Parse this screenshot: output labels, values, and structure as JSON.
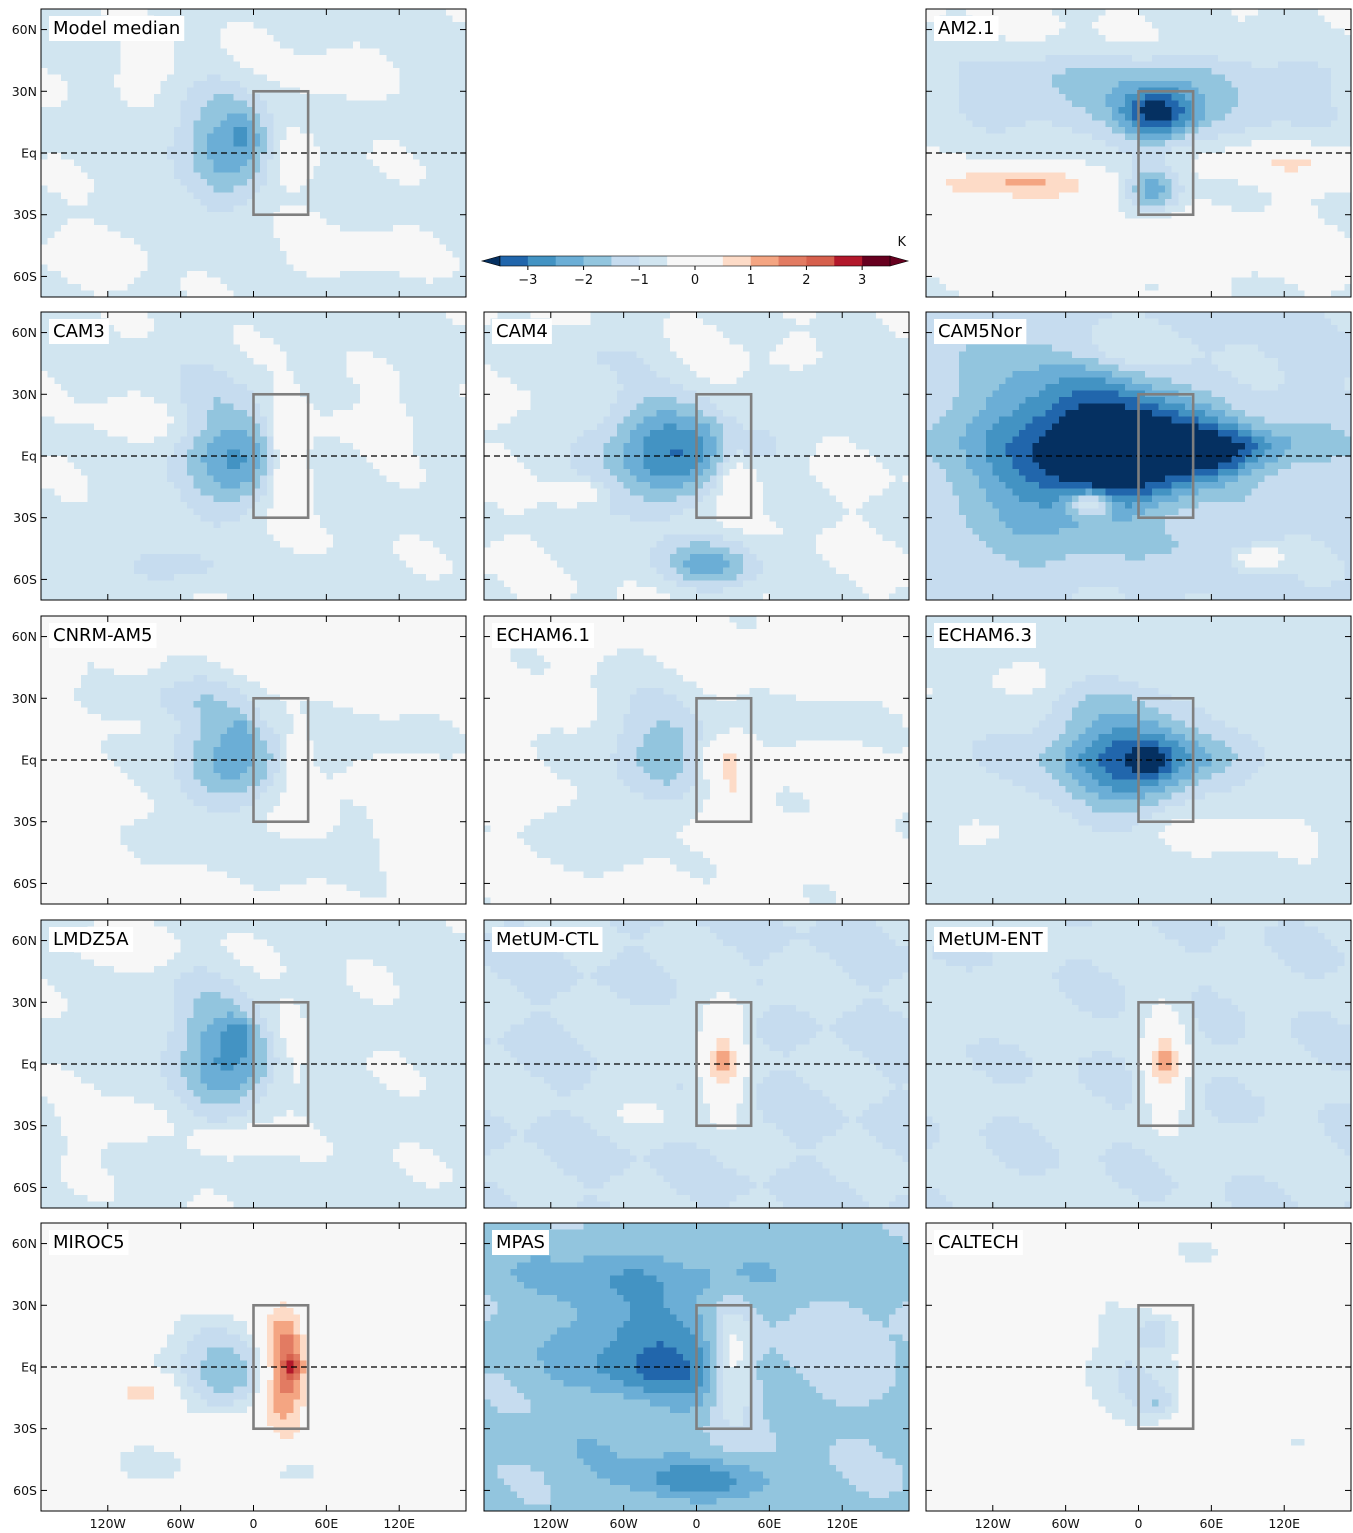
{
  "chart_data": {
    "type": "heatmap",
    "title": "",
    "xlabel": "",
    "ylabel": "",
    "x_ticks": [
      "120W",
      "60W",
      "0",
      "60E",
      "120E"
    ],
    "x_tick_values": [
      -120,
      -60,
      0,
      60,
      120
    ],
    "y_ticks": [
      "60N",
      "30N",
      "Eq",
      "30S",
      "60S"
    ],
    "y_tick_values": [
      60,
      30,
      0,
      -30,
      -60
    ],
    "xlim": [
      -175,
      175
    ],
    "ylim": [
      -70,
      70
    ],
    "equator_line": "dashed",
    "box": {
      "lon": [
        0,
        45
      ],
      "lat": [
        -30,
        30
      ]
    },
    "colorbar": {
      "unit": "K",
      "tick_labels": [
        "−3",
        "−2",
        "−1",
        "0",
        "1",
        "2",
        "3"
      ],
      "tick_values": [
        -3,
        -2,
        -1,
        0,
        1,
        2,
        3
      ],
      "levels": [
        -3.5,
        -3.0,
        -2.5,
        -2.0,
        -1.5,
        -1.0,
        -0.5,
        0.5,
        1.0,
        1.5,
        2.0,
        2.5,
        3.0,
        3.5
      ],
      "colors": [
        "#053061",
        "#2166ac",
        "#4393c3",
        "#6baed6",
        "#92c5de",
        "#c6dcef",
        "#d1e5f0",
        "#f7f7f7",
        "#fddbc7",
        "#f4a582",
        "#e27b62",
        "#d6604d",
        "#b2182b",
        "#67001f"
      ],
      "extend": "both"
    },
    "panels": [
      {
        "label": "Model median",
        "bg": -0.6,
        "features": [
          {
            "lon": -15,
            "lat": 5,
            "rlon": 45,
            "rlat": 26,
            "amp": -1.7,
            "tri": 0.55
          },
          {
            "lon": -8,
            "lat": 12,
            "rlon": 12,
            "rlat": 10,
            "amp": -0.5,
            "tri": 0
          },
          {
            "lon": 30,
            "lat": 0,
            "rlon": 18,
            "rlat": 12,
            "amp": 1.05,
            "tri": 0
          },
          {
            "lon": -60,
            "lat": 42,
            "rlon": 55,
            "rlat": 14,
            "amp": 0.4,
            "tri": 0
          },
          {
            "lon": 60,
            "lat": 35,
            "rlon": 35,
            "rlat": 12,
            "amp": 0.35,
            "tri": 0
          },
          {
            "lon": -110,
            "lat": -45,
            "rlon": 60,
            "rlat": 15,
            "amp": 0.3,
            "tri": 0
          },
          {
            "lon": 80,
            "lat": -50,
            "rlon": 60,
            "rlat": 12,
            "amp": 0.3,
            "tri": 0
          }
        ]
      },
      null,
      {
        "label": "AM2.1",
        "bg": -0.5,
        "features": [
          {
            "lon": 0,
            "lat": 25,
            "rlon": 170,
            "rlat": 18,
            "amp": -1.1,
            "tri": 0
          },
          {
            "lon": 15,
            "lat": 40,
            "rlon": 170,
            "rlat": 10,
            "amp": -0.5,
            "tri": 0
          },
          {
            "lon": 15,
            "lat": 18,
            "rlon": 30,
            "rlat": 13,
            "amp": -2.5,
            "tri": 0
          },
          {
            "lon": 12,
            "lat": -18,
            "rlon": 22,
            "rlat": 12,
            "amp": -1.9,
            "tri": 0
          },
          {
            "lon": -100,
            "lat": -15,
            "rlon": 75,
            "rlat": 8,
            "amp": 1.5,
            "tri": 0
          },
          {
            "lon": 130,
            "lat": -5,
            "rlon": 60,
            "rlat": 8,
            "amp": 1.0,
            "tri": 0
          },
          {
            "lon": -80,
            "lat": -40,
            "rlon": 120,
            "rlat": 18,
            "amp": 0.35,
            "tri": 0
          },
          {
            "lon": 60,
            "lat": -45,
            "rlon": 100,
            "rlat": 15,
            "amp": 0.35,
            "tri": 0
          }
        ]
      },
      {
        "label": "CAM3",
        "bg": -0.6,
        "features": [
          {
            "lon": -12,
            "lat": 2,
            "rlon": 50,
            "rlat": 26,
            "amp": -1.9,
            "tri": 0.55
          },
          {
            "lon": 28,
            "lat": 0,
            "rlon": 16,
            "rlat": 24,
            "amp": 1.6,
            "tri": 0
          },
          {
            "lon": -80,
            "lat": 15,
            "rlon": 60,
            "rlat": 12,
            "amp": 0.45,
            "tri": 0
          },
          {
            "lon": 80,
            "lat": 15,
            "rlon": 60,
            "rlat": 10,
            "amp": 0.4,
            "tri": 0
          },
          {
            "lon": -70,
            "lat": -55,
            "rlon": 60,
            "rlat": 8,
            "amp": -0.5,
            "tri": 0
          }
        ]
      },
      {
        "label": "CAM4",
        "bg": -0.5,
        "features": [
          {
            "lon": -15,
            "lat": 5,
            "rlon": 65,
            "rlat": 26,
            "amp": -2.5,
            "tri": 0.6
          },
          {
            "lon": 30,
            "lat": -5,
            "rlon": 16,
            "rlat": 18,
            "amp": 0.9,
            "tri": 0
          },
          {
            "lon": -50,
            "lat": 30,
            "rlon": 60,
            "rlat": 18,
            "amp": 0.45,
            "tri": 0
          },
          {
            "lon": 120,
            "lat": 35,
            "rlon": 50,
            "rlat": 12,
            "amp": -0.4,
            "tri": 0
          },
          {
            "lon": 10,
            "lat": -52,
            "rlon": 40,
            "rlat": 12,
            "amp": -1.7,
            "tri": 0
          },
          {
            "lon": -100,
            "lat": 50,
            "rlon": 60,
            "rlat": 12,
            "amp": -0.4,
            "tri": 0
          },
          {
            "lon": -100,
            "lat": -18,
            "rlon": 20,
            "rlat": 5,
            "amp": 1.2,
            "tri": 0
          }
        ]
      },
      {
        "label": "CAM5Nor",
        "bg": -1.05,
        "features": [
          {
            "lon": 0,
            "lat": 0,
            "rlon": 170,
            "rlat": 25,
            "amp": -0.6,
            "tri": 0
          },
          {
            "lon": -10,
            "lat": 5,
            "rlon": 105,
            "rlat": 30,
            "amp": -3.3,
            "tri": 0.7
          },
          {
            "lon": 70,
            "lat": 0,
            "rlon": 40,
            "rlat": 12,
            "amp": -0.8,
            "tri": 0
          },
          {
            "lon": -40,
            "lat": -23,
            "rlon": 18,
            "rlat": 6,
            "amp": 2.2,
            "tri": 0
          },
          {
            "lon": -20,
            "lat": 52,
            "rlon": 50,
            "rlat": 12,
            "amp": 0.6,
            "tri": 0
          },
          {
            "lon": 100,
            "lat": -50,
            "rlon": 18,
            "rlat": 5,
            "amp": 1.5,
            "tri": 0
          },
          {
            "lon": 30,
            "lat": -42,
            "rlon": 50,
            "rlat": 10,
            "amp": -0.5,
            "tri": 0
          }
        ]
      },
      {
        "label": "CNRM-AM5",
        "bg": -0.3,
        "features": [
          {
            "lon": -15,
            "lat": 2,
            "rlon": 55,
            "rlat": 26,
            "amp": -1.8,
            "tri": 0.55
          },
          {
            "lon": 35,
            "lat": 0,
            "rlon": 13,
            "rlat": 12,
            "amp": 1.2,
            "tri": 0
          },
          {
            "lon": -10,
            "lat": 15,
            "rlon": 12,
            "rlat": 8,
            "amp": -0.6,
            "tri": 0
          },
          {
            "lon": -80,
            "lat": 30,
            "rlon": 80,
            "rlat": 10,
            "amp": -0.5,
            "tri": 0
          },
          {
            "lon": 100,
            "lat": 10,
            "rlon": 60,
            "rlat": 12,
            "amp": -0.45,
            "tri": 0
          },
          {
            "lon": 40,
            "lat": -45,
            "rlon": 80,
            "rlat": 15,
            "amp": -0.45,
            "tri": 0
          }
        ]
      },
      {
        "label": "ECHAM6.1",
        "bg": -0.35,
        "features": [
          {
            "lon": -20,
            "lat": 5,
            "rlon": 55,
            "rlat": 26,
            "amp": -1.45,
            "tri": 0.5
          },
          {
            "lon": 22,
            "lat": 0,
            "rlon": 25,
            "rlat": 11,
            "amp": 1.5,
            "tri": 0
          },
          {
            "lon": 30,
            "lat": -15,
            "rlon": 15,
            "rlat": 8,
            "amp": 0.8,
            "tri": 0
          },
          {
            "lon": -100,
            "lat": -40,
            "rlon": 60,
            "rlat": 15,
            "amp": -0.3,
            "tri": 0
          },
          {
            "lon": 100,
            "lat": 20,
            "rlon": 60,
            "rlat": 12,
            "amp": -0.35,
            "tri": 0
          },
          {
            "lon": 120,
            "lat": 55,
            "rlon": 40,
            "rlat": 10,
            "amp": 0.4,
            "tri": 0
          }
        ]
      },
      {
        "label": "ECHAM6.3",
        "bg": -0.7,
        "features": [
          {
            "lon": 0,
            "lat": 2,
            "rlon": 65,
            "rlat": 26,
            "amp": -2.3,
            "tri": 0.55
          },
          {
            "lon": 10,
            "lat": 0,
            "rlon": 16,
            "rlat": 7,
            "amp": -0.9,
            "tri": 0
          },
          {
            "lon": 0,
            "lat": 0,
            "rlon": 170,
            "rlat": 12,
            "amp": -0.4,
            "tri": 0
          },
          {
            "lon": -80,
            "lat": 40,
            "rlon": 60,
            "rlat": 10,
            "amp": 0.5,
            "tri": 0
          },
          {
            "lon": 80,
            "lat": -35,
            "rlon": 80,
            "rlat": 10,
            "amp": 0.4,
            "tri": 0
          },
          {
            "lon": -100,
            "lat": -35,
            "rlon": 60,
            "rlat": 10,
            "amp": 0.4,
            "tri": 0
          }
        ]
      },
      {
        "label": "LMDZ5A",
        "bg": -0.6,
        "features": [
          {
            "lon": -20,
            "lat": 5,
            "rlon": 45,
            "rlat": 28,
            "amp": -1.9,
            "tri": 0.55
          },
          {
            "lon": -12,
            "lat": 15,
            "rlon": 12,
            "rlat": 8,
            "amp": -0.8,
            "tri": 0
          },
          {
            "lon": 30,
            "lat": 10,
            "rlon": 16,
            "rlat": 20,
            "amp": 0.55,
            "tri": 0
          },
          {
            "lon": -20,
            "lat": -38,
            "rlon": 30,
            "rlat": 7,
            "amp": 1.05,
            "tri": 0
          },
          {
            "lon": -100,
            "lat": -30,
            "rlon": 50,
            "rlat": 12,
            "amp": 0.45,
            "tri": 0
          },
          {
            "lon": -100,
            "lat": 55,
            "rlon": 60,
            "rlat": 10,
            "amp": 0.45,
            "tri": 0
          }
        ]
      },
      {
        "label": "MetUM-CTL",
        "bg": -1.0,
        "features": [
          {
            "lon": 22,
            "lat": 0,
            "rlon": 16,
            "rlat": 27,
            "amp": 1.6,
            "tri": 0
          },
          {
            "lon": 25,
            "lat": 0,
            "rlon": 22,
            "rlat": 7,
            "amp": 0.6,
            "tri": 0
          },
          {
            "lon": -30,
            "lat": 5,
            "rlon": 40,
            "rlat": 25,
            "amp": 0.25,
            "tri": 0
          },
          {
            "lon": -40,
            "lat": -25,
            "rlon": 35,
            "rlat": 8,
            "amp": 0.5,
            "tri": 0
          },
          {
            "lon": 30,
            "lat": 28,
            "rlon": 35,
            "rlat": 8,
            "amp": 0.35,
            "tri": 0
          }
        ]
      },
      {
        "label": "MetUM-ENT",
        "bg": -0.95,
        "features": [
          {
            "lon": 22,
            "lat": 0,
            "rlon": 16,
            "rlat": 28,
            "amp": 1.6,
            "tri": 0
          },
          {
            "lon": 22,
            "lat": 0,
            "rlon": 18,
            "rlat": 7,
            "amp": 0.5,
            "tri": 0
          },
          {
            "lon": -130,
            "lat": 30,
            "rlon": 40,
            "rlat": 15,
            "amp": 0.4,
            "tri": 0
          },
          {
            "lon": 100,
            "lat": -40,
            "rlon": 40,
            "rlat": 10,
            "amp": 0.35,
            "tri": 0
          }
        ]
      },
      {
        "label": "MIROC5",
        "bg": -0.15,
        "features": [
          {
            "lon": -20,
            "lat": 0,
            "rlon": 50,
            "rlat": 22,
            "amp": -1.6,
            "tri": 0.55
          },
          {
            "lon": 25,
            "lat": 0,
            "rlon": 18,
            "rlat": 28,
            "amp": 2.3,
            "tri": 0
          },
          {
            "lon": 33,
            "lat": 0,
            "rlon": 8,
            "rlat": 6,
            "amp": 1.4,
            "tri": 0
          },
          {
            "lon": -90,
            "lat": -12,
            "rlon": 30,
            "rlat": 8,
            "amp": 1.0,
            "tri": 0
          },
          {
            "lon": -30,
            "lat": -30,
            "rlon": 20,
            "rlat": 6,
            "amp": 0.9,
            "tri": 0
          },
          {
            "lon": -30,
            "lat": 30,
            "rlon": 20,
            "rlat": 5,
            "amp": 0.8,
            "tri": 0
          },
          {
            "lon": 40,
            "lat": -50,
            "rlon": 30,
            "rlat": 8,
            "amp": -0.5,
            "tri": 0
          },
          {
            "lon": -90,
            "lat": -50,
            "rlon": 40,
            "rlat": 10,
            "amp": -0.4,
            "tri": 0
          }
        ]
      },
      {
        "label": "MPAS",
        "bg": -1.55,
        "features": [
          {
            "lon": -25,
            "lat": 2,
            "rlon": 80,
            "rlat": 30,
            "amp": -1.6,
            "tri": 0.6
          },
          {
            "lon": 30,
            "lat": 2,
            "rlon": 18,
            "rlat": 26,
            "amp": 1.8,
            "tri": 0
          },
          {
            "lon": 0,
            "lat": 45,
            "rlon": 170,
            "rlat": 12,
            "amp": -0.6,
            "tri": 0
          },
          {
            "lon": 0,
            "lat": -55,
            "rlon": 60,
            "rlat": 10,
            "amp": -1.2,
            "tri": 0
          },
          {
            "lon": -60,
            "lat": -20,
            "rlon": 60,
            "rlat": 12,
            "amp": 0.7,
            "tri": 0
          },
          {
            "lon": 100,
            "lat": 10,
            "rlon": 70,
            "rlat": 15,
            "amp": 0.5,
            "tri": 0
          }
        ]
      },
      {
        "label": "CALTECH",
        "bg": 0.0,
        "features": [
          {
            "lon": 0,
            "lat": 0,
            "rlon": 45,
            "rlat": 30,
            "amp": -1.0,
            "tri": 0.4
          },
          {
            "lon": 15,
            "lat": 17,
            "rlon": 16,
            "rlat": 8,
            "amp": -0.9,
            "tri": 0
          },
          {
            "lon": 15,
            "lat": -18,
            "rlon": 16,
            "rlat": 8,
            "amp": -0.9,
            "tri": 0
          },
          {
            "lon": 130,
            "lat": -38,
            "rlon": 30,
            "rlat": 8,
            "amp": -0.6,
            "tri": 0
          },
          {
            "lon": 50,
            "lat": 55,
            "rlon": 40,
            "rlat": 8,
            "amp": -0.6,
            "tri": 0
          }
        ]
      }
    ]
  }
}
